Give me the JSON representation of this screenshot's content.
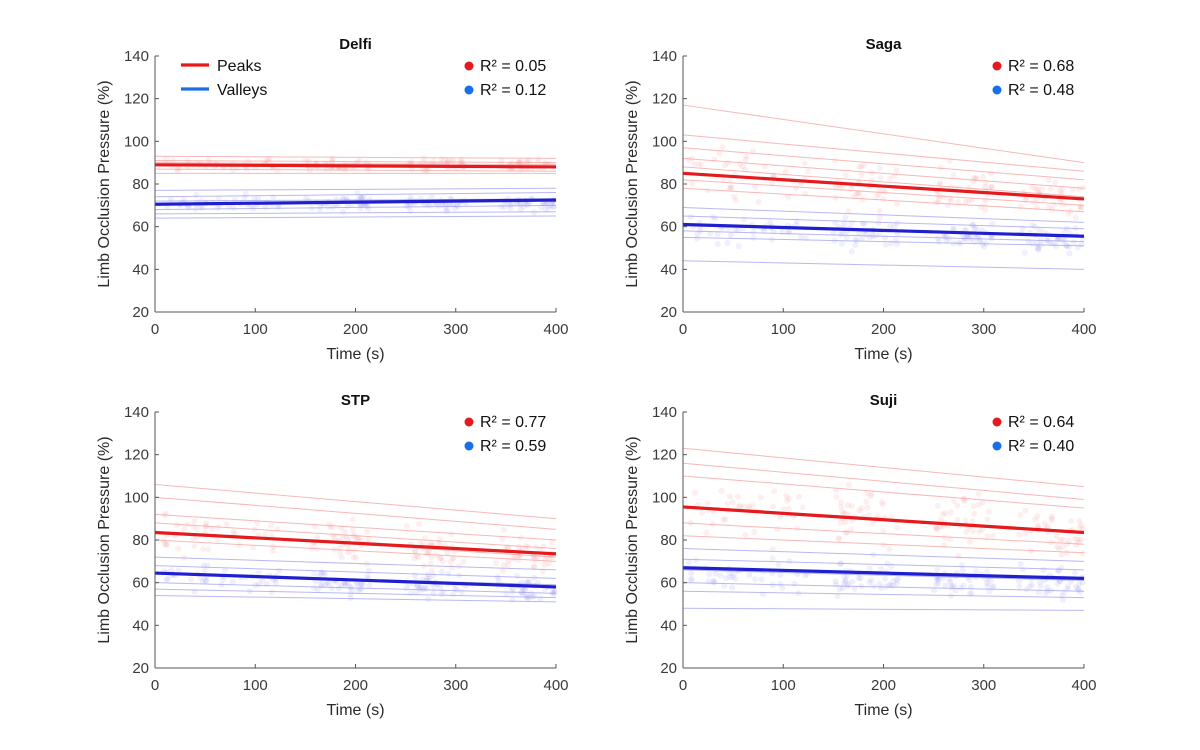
{
  "chart_data": [
    {
      "type": "scatter",
      "title": "Delfi",
      "xlabel": "Time (s)",
      "ylabel": "Limb Occlusion Pressure (%)",
      "xlim": [
        0,
        400
      ],
      "ylim": [
        20,
        140
      ],
      "xticks": [
        0,
        100,
        200,
        300,
        400
      ],
      "yticks": [
        20,
        40,
        60,
        80,
        100,
        120,
        140
      ],
      "legend": {
        "show": true,
        "placement": "top-left",
        "entries": [
          "Peaks",
          "Valleys"
        ]
      },
      "fits": [
        {
          "name": "Peaks",
          "color": "#e41a1c",
          "r2_label": "R² = 0.05",
          "x": [
            0,
            400
          ],
          "y": [
            89,
            88
          ]
        },
        {
          "name": "Valleys",
          "color": "#1f1fd0",
          "r2_label": "R² = 0.12",
          "x": [
            0,
            400
          ],
          "y": [
            70.5,
            72.5
          ]
        }
      ],
      "subject_lines": {
        "Peaks": [
          [
            [
              0,
              93
            ],
            [
              400,
              92
            ]
          ],
          [
            [
              0,
              90
            ],
            [
              400,
              89
            ]
          ],
          [
            [
              0,
              87
            ],
            [
              400,
              86
            ]
          ],
          [
            [
              0,
              85
            ],
            [
              400,
              85
            ]
          ],
          [
            [
              0,
              91
            ],
            [
              400,
              90
            ]
          ]
        ],
        "Valleys": [
          [
            [
              0,
              77
            ],
            [
              400,
              78
            ]
          ],
          [
            [
              0,
              74
            ],
            [
              400,
              76
            ]
          ],
          [
            [
              0,
              72
            ],
            [
              400,
              73
            ]
          ],
          [
            [
              0,
              68
            ],
            [
              400,
              70
            ]
          ],
          [
            [
              0,
              66
            ],
            [
              400,
              67
            ]
          ],
          [
            [
              0,
              64
            ],
            [
              400,
              65
            ]
          ]
        ]
      },
      "clusters": {
        "x_ranges": [
          [
            5,
            125
          ],
          [
            150,
            215
          ],
          [
            250,
            310
          ],
          [
            345,
            400
          ]
        ],
        "Peaks": {
          "center": 89,
          "spread": 10
        },
        "Valleys": {
          "center": 71,
          "spread": 12
        }
      }
    },
    {
      "type": "scatter",
      "title": "Saga",
      "xlabel": "Time (s)",
      "ylabel": "Limb Occlusion Pressure (%)",
      "xlim": [
        0,
        400
      ],
      "ylim": [
        20,
        140
      ],
      "xticks": [
        0,
        100,
        200,
        300,
        400
      ],
      "yticks": [
        20,
        40,
        60,
        80,
        100,
        120,
        140
      ],
      "legend": {
        "show": false
      },
      "fits": [
        {
          "name": "Peaks",
          "color": "#e41a1c",
          "r2_label": "R² = 0.68",
          "x": [
            0,
            400
          ],
          "y": [
            85,
            73
          ]
        },
        {
          "name": "Valleys",
          "color": "#1f1fd0",
          "r2_label": "R² = 0.48",
          "x": [
            0,
            400
          ],
          "y": [
            61,
            55.5
          ]
        }
      ],
      "subject_lines": {
        "Peaks": [
          [
            [
              0,
              117
            ],
            [
              400,
              90
            ]
          ],
          [
            [
              0,
              103
            ],
            [
              400,
              86
            ]
          ],
          [
            [
              0,
              97
            ],
            [
              400,
              82
            ]
          ],
          [
            [
              0,
              92
            ],
            [
              400,
              78
            ]
          ],
          [
            [
              0,
              88
            ],
            [
              400,
              74
            ]
          ],
          [
            [
              0,
              82
            ],
            [
              400,
              70
            ]
          ],
          [
            [
              0,
              78
            ],
            [
              400,
              67
            ]
          ]
        ],
        "Valleys": [
          [
            [
              0,
              69
            ],
            [
              400,
              62
            ]
          ],
          [
            [
              0,
              65
            ],
            [
              400,
              59
            ]
          ],
          [
            [
              0,
              61
            ],
            [
              400,
              56
            ]
          ],
          [
            [
              0,
              58
            ],
            [
              400,
              53
            ]
          ],
          [
            [
              0,
              55
            ],
            [
              400,
              51
            ]
          ],
          [
            [
              0,
              44
            ],
            [
              400,
              40
            ]
          ]
        ]
      },
      "clusters": {
        "x_ranges": [
          [
            5,
            125
          ],
          [
            150,
            215
          ],
          [
            250,
            310
          ],
          [
            335,
            400
          ]
        ],
        "Peaks": {
          "center": 85,
          "spread": 38,
          "slope": -0.03
        },
        "Valleys": {
          "center": 59,
          "spread": 22,
          "slope": -0.014
        }
      }
    },
    {
      "type": "scatter",
      "title": "STP",
      "xlabel": "Time (s)",
      "ylabel": "Limb Occlusion Pressure (%)",
      "xlim": [
        0,
        400
      ],
      "ylim": [
        20,
        140
      ],
      "xticks": [
        0,
        100,
        200,
        300,
        400
      ],
      "yticks": [
        20,
        40,
        60,
        80,
        100,
        120,
        140
      ],
      "legend": {
        "show": false
      },
      "fits": [
        {
          "name": "Peaks",
          "color": "#e41a1c",
          "r2_label": "R² = 0.77",
          "x": [
            0,
            400
          ],
          "y": [
            83.5,
            73.5
          ]
        },
        {
          "name": "Valleys",
          "color": "#1f1fd0",
          "r2_label": "R² = 0.59",
          "x": [
            0,
            400
          ],
          "y": [
            64.5,
            58
          ]
        }
      ],
      "subject_lines": {
        "Peaks": [
          [
            [
              0,
              106
            ],
            [
              400,
              90
            ]
          ],
          [
            [
              0,
              100
            ],
            [
              400,
              85
            ]
          ],
          [
            [
              0,
              92
            ],
            [
              400,
              80
            ]
          ],
          [
            [
              0,
              88
            ],
            [
              400,
              76
            ]
          ],
          [
            [
              0,
              84
            ],
            [
              400,
              72
            ]
          ],
          [
            [
              0,
              80
            ],
            [
              400,
              70
            ]
          ]
        ],
        "Valleys": [
          [
            [
              0,
              72
            ],
            [
              400,
              66
            ]
          ],
          [
            [
              0,
              68
            ],
            [
              400,
              62
            ]
          ],
          [
            [
              0,
              64
            ],
            [
              400,
              59
            ]
          ],
          [
            [
              0,
              60
            ],
            [
              400,
              55
            ]
          ],
          [
            [
              0,
              57
            ],
            [
              400,
              53
            ]
          ],
          [
            [
              0,
              54
            ],
            [
              400,
              51
            ]
          ]
        ]
      },
      "clusters": {
        "x_ranges": [
          [
            5,
            125
          ],
          [
            155,
            215
          ],
          [
            250,
            310
          ],
          [
            340,
            400
          ]
        ],
        "Peaks": {
          "center": 83,
          "spread": 30,
          "slope": -0.025
        },
        "Valleys": {
          "center": 63,
          "spread": 18,
          "slope": -0.016
        }
      }
    },
    {
      "type": "scatter",
      "title": "Suji",
      "xlabel": "Time (s)",
      "ylabel": "Limb Occlusion Pressure (%)",
      "xlim": [
        0,
        400
      ],
      "ylim": [
        20,
        140
      ],
      "xticks": [
        0,
        100,
        200,
        300,
        400
      ],
      "yticks": [
        20,
        40,
        60,
        80,
        100,
        120,
        140
      ],
      "legend": {
        "show": false
      },
      "fits": [
        {
          "name": "Peaks",
          "color": "#e41a1c",
          "r2_label": "R² = 0.64",
          "x": [
            0,
            400
          ],
          "y": [
            95.5,
            83.5
          ]
        },
        {
          "name": "Valleys",
          "color": "#1f1fd0",
          "r2_label": "R² = 0.40",
          "x": [
            0,
            400
          ],
          "y": [
            67,
            62
          ]
        }
      ],
      "subject_lines": {
        "Peaks": [
          [
            [
              0,
              123
            ],
            [
              400,
              105
            ]
          ],
          [
            [
              0,
              116
            ],
            [
              400,
              99
            ]
          ],
          [
            [
              0,
              110
            ],
            [
              400,
              95
            ]
          ],
          [
            [
              0,
              95
            ],
            [
              400,
              83
            ]
          ],
          [
            [
              0,
              88
            ],
            [
              400,
              78
            ]
          ],
          [
            [
              0,
              82
            ],
            [
              400,
              74
            ]
          ]
        ],
        "Valleys": [
          [
            [
              0,
              76
            ],
            [
              400,
              70
            ]
          ],
          [
            [
              0,
              71
            ],
            [
              400,
              66
            ]
          ],
          [
            [
              0,
              66
            ],
            [
              400,
              61
            ]
          ],
          [
            [
              0,
              60
            ],
            [
              400,
              56
            ]
          ],
          [
            [
              0,
              56
            ],
            [
              400,
              53
            ]
          ],
          [
            [
              0,
              48
            ],
            [
              400,
              47
            ]
          ]
        ]
      },
      "clusters": {
        "x_ranges": [
          [
            5,
            125
          ],
          [
            150,
            215
          ],
          [
            250,
            310
          ],
          [
            335,
            400
          ]
        ],
        "Peaks": {
          "center": 96,
          "spread": 40,
          "slope": -0.03
        },
        "Valleys": {
          "center": 64,
          "spread": 26,
          "slope": -0.012
        }
      }
    }
  ]
}
